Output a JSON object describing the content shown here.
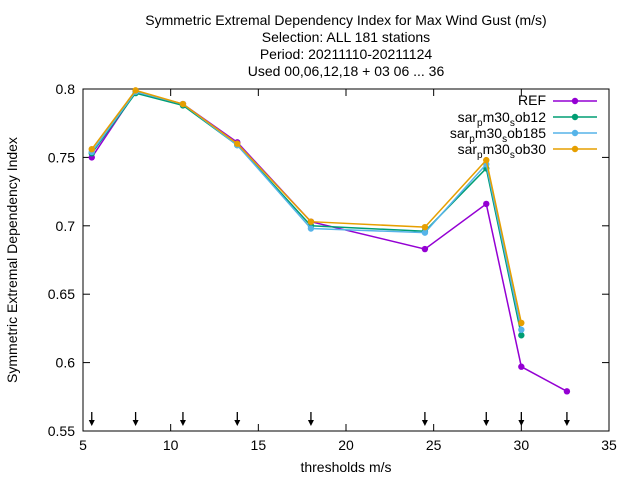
{
  "chart_data": {
    "type": "line",
    "title_lines": [
      "Symmetric Extremal Dependency Index  for Max Wind Gust (m/s)",
      "Selection: ALL    181 stations",
      "Period: 20211110-20211124",
      "Used 00,06,12,18 + 03 06 ... 36"
    ],
    "xlabel": "thresholds m/s",
    "ylabel": "Symmetric Extremal Dependency Index",
    "xlim": [
      5,
      35
    ],
    "ylim": [
      0.55,
      0.8
    ],
    "xticks": [
      5,
      10,
      15,
      20,
      25,
      30,
      35
    ],
    "yticks": [
      0.55,
      0.6,
      0.65,
      0.7,
      0.75,
      0.8
    ],
    "xtick_labels": [
      "5",
      "10",
      "15",
      "20",
      "25",
      "30",
      "35"
    ],
    "ytick_labels": [
      "0.55",
      "0.6",
      "0.65",
      "0.7",
      "0.75",
      "0.8"
    ],
    "grid": false,
    "legend_position": "top-right",
    "threshold_markers": [
      5.5,
      8,
      10.7,
      13.8,
      18,
      24.5,
      28,
      30,
      32.6
    ],
    "series": [
      {
        "name": "REF",
        "legend_label": {
          "a": "REF"
        },
        "color": "#9400d3",
        "marker": "filled-circle",
        "x": [
          5.5,
          8,
          10.7,
          13.8,
          18,
          24.5,
          28,
          30,
          32.6
        ],
        "y": [
          0.75,
          0.798,
          0.789,
          0.761,
          0.703,
          0.683,
          0.716,
          0.597,
          0.579
        ]
      },
      {
        "name": "sar_p m30_s ob12",
        "legend_label": {
          "a": "sar",
          "b": "p",
          "c": "m30",
          "d": "s",
          "e": "ob12"
        },
        "color": "#009e73",
        "marker": "filled-circle",
        "x": [
          5.5,
          8,
          10.7,
          13.8,
          18,
          24.5,
          28,
          30
        ],
        "y": [
          0.753,
          0.797,
          0.788,
          0.759,
          0.7,
          0.696,
          0.742,
          0.62
        ]
      },
      {
        "name": "sar_p m30_s ob185",
        "legend_label": {
          "a": "sar",
          "b": "p",
          "c": "m30",
          "d": "s",
          "e": "ob185"
        },
        "color": "#56b4e9",
        "marker": "filled-circle",
        "x": [
          5.5,
          8,
          10.7,
          13.8,
          18,
          24.5,
          28,
          30
        ],
        "y": [
          0.754,
          0.798,
          0.789,
          0.759,
          0.698,
          0.695,
          0.745,
          0.624
        ]
      },
      {
        "name": "sar_p m30_s ob30",
        "legend_label": {
          "a": "sar",
          "b": "p",
          "c": "m30",
          "d": "s",
          "e": "ob30"
        },
        "color": "#e69f00",
        "marker": "filled-circle",
        "x": [
          5.5,
          8,
          10.7,
          13.8,
          18,
          24.5,
          28,
          30
        ],
        "y": [
          0.756,
          0.799,
          0.789,
          0.76,
          0.703,
          0.699,
          0.748,
          0.629
        ]
      }
    ]
  }
}
